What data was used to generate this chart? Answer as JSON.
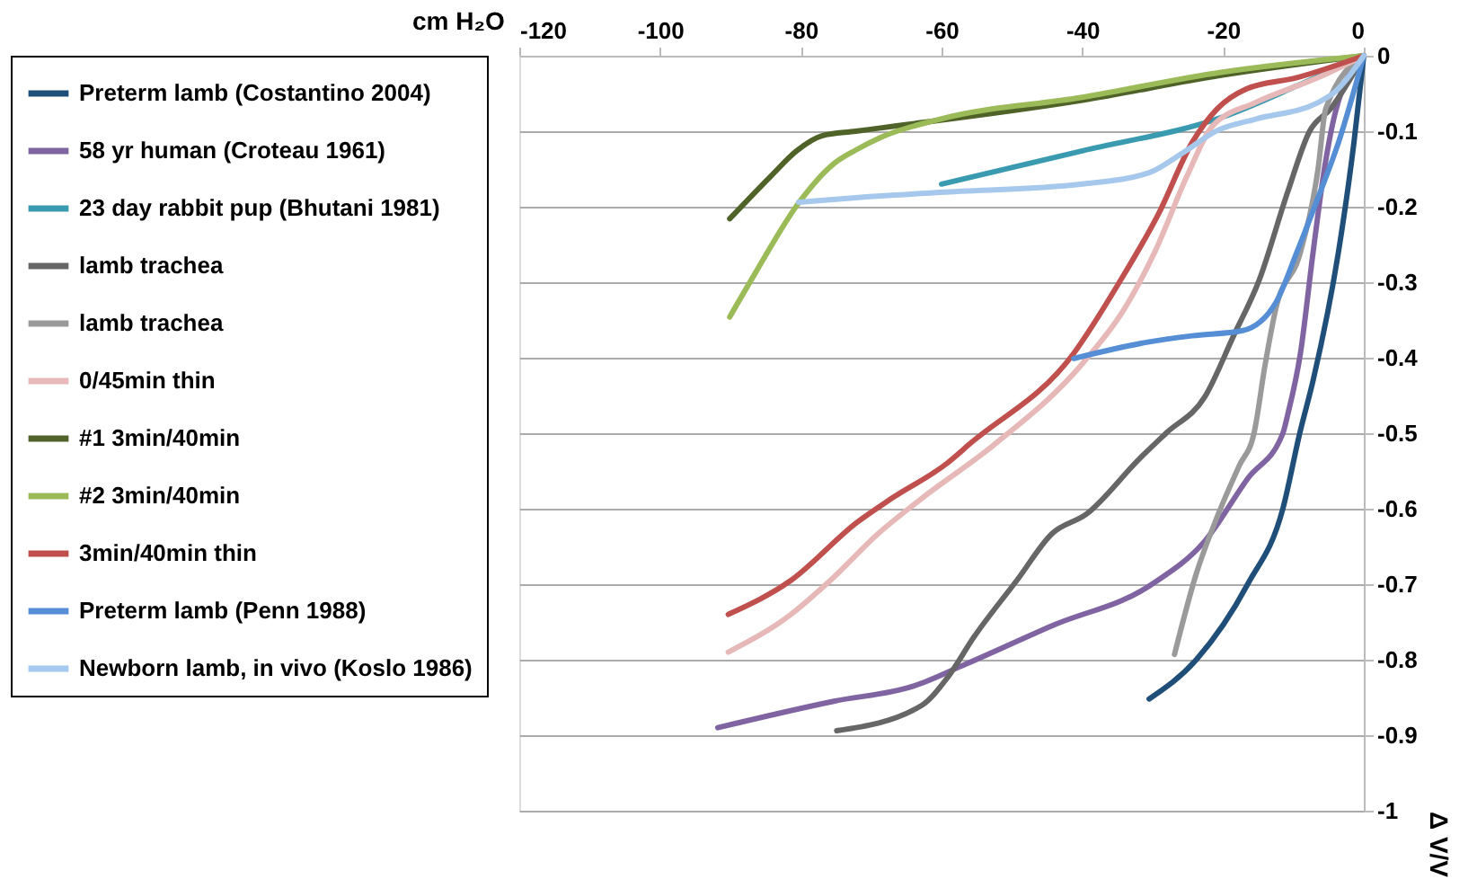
{
  "chart_data": {
    "type": "line",
    "xlabel": "cm H₂O",
    "ylabel": "Δ V/V",
    "xlim": [
      -120,
      0
    ],
    "xticks": [
      -120,
      -100,
      -80,
      -60,
      -40,
      -20,
      0
    ],
    "ylim": [
      -1,
      0
    ],
    "yticks": [
      0,
      -0.1,
      -0.2,
      -0.3,
      -0.4,
      -0.5,
      -0.6,
      -0.7,
      -0.8,
      -0.9,
      -1
    ],
    "grid": "y",
    "legend": "left",
    "marker": "none",
    "line_style": "solid",
    "series": [
      {
        "name": "Preterm lamb (Costantino 2004)",
        "color": "#1f4e79",
        "x": [
          -30.5,
          -23.8,
          -16.5,
          -11.5,
          -9.1,
          -7.2,
          -3.6,
          -1.4,
          0
        ],
        "values": [
          -0.852,
          -0.8,
          -0.7,
          -0.6,
          -0.5,
          -0.43,
          -0.26,
          -0.115,
          0
        ]
      },
      {
        "name": "58 yr human (Croteau 1961)",
        "color": "#8064a2",
        "x": [
          -91.8,
          -75.3,
          -64,
          -56.6,
          -44.3,
          -30.1,
          -22.6,
          -16.5,
          -11.5,
          -10.8,
          -9,
          -7.2,
          -5.6,
          -4.1,
          0
        ],
        "values": [
          -0.89,
          -0.855,
          -0.835,
          -0.806,
          -0.755,
          -0.7,
          -0.643,
          -0.56,
          -0.5,
          -0.475,
          -0.394,
          -0.26,
          -0.15,
          -0.077,
          0
        ]
      },
      {
        "name": "23 day rabbit pup (Bhutani 1981)",
        "color": "#3a9bb0",
        "x": [
          -60,
          -40,
          -20,
          -9.5,
          0
        ],
        "values": [
          -0.17,
          -0.126,
          -0.081,
          -0.04,
          0
        ]
      },
      {
        "name": "lamb trachea",
        "color": "#666666",
        "x": [
          -74.9,
          -62.9,
          -59.1,
          -55.4,
          -49.3,
          -44.3,
          -39.4,
          -31.9,
          -28.1,
          -22.6,
          -18.5,
          -14.9,
          -10.8,
          -7.7,
          -4.7,
          0
        ],
        "values": [
          -0.894,
          -0.861,
          -0.823,
          -0.77,
          -0.695,
          -0.633,
          -0.607,
          -0.534,
          -0.5,
          -0.452,
          -0.371,
          -0.298,
          -0.18,
          -0.1,
          -0.07,
          0
        ]
      },
      {
        "name": "lamb trachea",
        "color": "#9a9a9a",
        "x": [
          -26.9,
          -23.8,
          -20.8,
          -17.7,
          -15.6,
          -14,
          -12.5,
          -9,
          -6.5,
          -5.4,
          0
        ],
        "values": [
          -0.793,
          -0.686,
          -0.61,
          -0.543,
          -0.5,
          -0.408,
          -0.335,
          -0.26,
          -0.15,
          -0.07,
          0
        ]
      },
      {
        "name": "0/45min thin",
        "color": "#e6b9b8",
        "x": [
          -90.3,
          -81.4,
          -75.8,
          -69,
          -62.9,
          -52.5,
          -40,
          -34,
          -29.7,
          -25.1,
          -21.5,
          -15.4,
          -6.5,
          0
        ],
        "values": [
          -0.79,
          -0.74,
          -0.695,
          -0.633,
          -0.587,
          -0.515,
          -0.408,
          -0.335,
          -0.26,
          -0.159,
          -0.093,
          -0.062,
          -0.029,
          0
        ]
      },
      {
        "name": "#1 3min/40min",
        "color": "#4f6228",
        "x": [
          -90.1,
          -84.2,
          -80.6,
          -77,
          -72.2,
          -40,
          -20.3,
          0
        ],
        "values": [
          -0.216,
          -0.159,
          -0.126,
          -0.106,
          -0.1,
          -0.059,
          -0.026,
          0
        ]
      },
      {
        "name": "#2 3min/40min",
        "color": "#9bbb59",
        "x": [
          -90.1,
          -86.6,
          -80.3,
          -75.3,
          -72.2,
          -68.6,
          -60.2,
          -40,
          -20.3,
          0
        ],
        "values": [
          -0.346,
          -0.29,
          -0.195,
          -0.143,
          -0.125,
          -0.108,
          -0.084,
          -0.055,
          -0.022,
          0
        ]
      },
      {
        "name": "3min/40min thin",
        "color": "#c0504d",
        "x": [
          -90.3,
          -81.4,
          -72,
          -67.2,
          -59.1,
          -56.1,
          -41.2,
          -34.6,
          -29.2,
          -24.4,
          -20.8,
          -16.7,
          -9.5,
          0
        ],
        "values": [
          -0.74,
          -0.695,
          -0.618,
          -0.587,
          -0.539,
          -0.515,
          -0.394,
          -0.298,
          -0.21,
          -0.115,
          -0.07,
          -0.044,
          -0.029,
          0
        ]
      },
      {
        "name": "Preterm lamb (Penn 1988)",
        "color": "#558ed5",
        "x": [
          -41.2,
          -30.5,
          -24.4,
          -17.2,
          -12.5,
          -9.5,
          -6.5,
          -3.6,
          0
        ],
        "values": [
          -0.401,
          -0.379,
          -0.371,
          -0.364,
          -0.327,
          -0.26,
          -0.188,
          -0.115,
          0
        ]
      },
      {
        "name": "Newborn lamb, in vivo (Koslo 1986)",
        "color": "#a6c8ec",
        "x": [
          -80.3,
          -72.2,
          -60.2,
          -40,
          -30.5,
          -25.6,
          -20.8,
          -15.4,
          -6.5,
          -4.1,
          0
        ],
        "values": [
          -0.194,
          -0.188,
          -0.181,
          -0.17,
          -0.155,
          -0.128,
          -0.099,
          -0.084,
          -0.062,
          -0.048,
          0
        ]
      }
    ]
  }
}
